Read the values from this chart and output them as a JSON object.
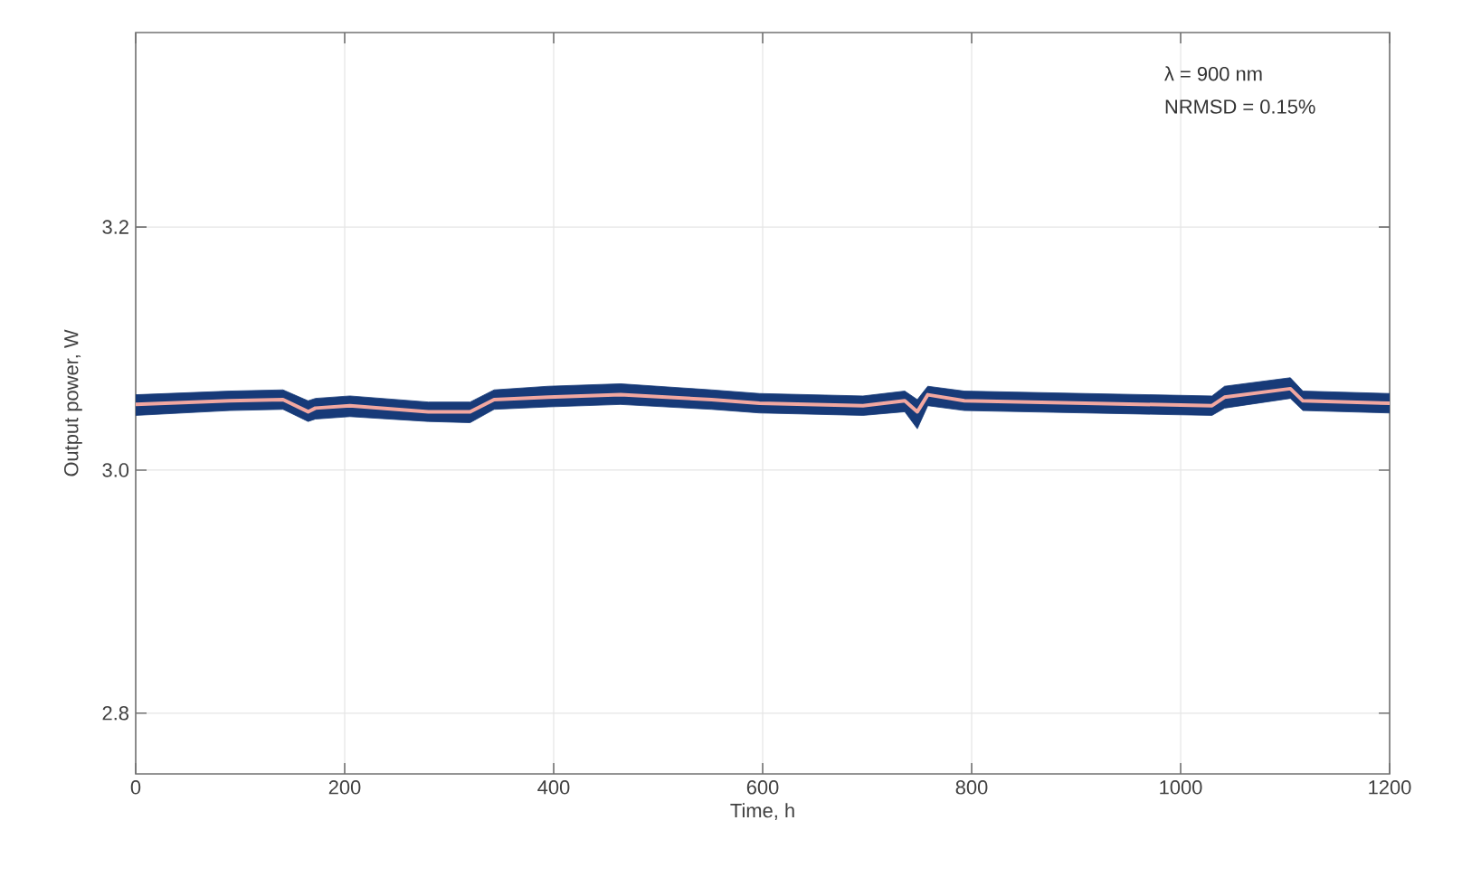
{
  "chart_data": {
    "type": "line",
    "xlabel": "Time, h",
    "ylabel": "Output power, W",
    "annotations": [
      "λ = 900 nm",
      "NRMSD = 0.15%"
    ],
    "x": [
      0,
      90,
      141,
      165,
      172,
      205,
      280,
      320,
      343,
      395,
      464,
      551,
      597,
      696,
      736,
      748,
      758,
      793,
      909,
      1030,
      1042,
      1105,
      1117,
      1200
    ],
    "series": [
      {
        "color": "#f2a7a0",
        "values": [
          3.054,
          3.057,
          3.058,
          3.048,
          3.051,
          3.053,
          3.048,
          3.048,
          3.058,
          3.06,
          3.062,
          3.058,
          3.055,
          3.053,
          3.057,
          3.048,
          3.062,
          3.057,
          3.055,
          3.053,
          3.06,
          3.067,
          3.057,
          3.055
        ],
        "lower": [
          3.045,
          3.049,
          3.05,
          3.04,
          3.042,
          3.044,
          3.04,
          3.039,
          3.05,
          3.052,
          3.054,
          3.05,
          3.047,
          3.045,
          3.048,
          3.034,
          3.053,
          3.049,
          3.047,
          3.045,
          3.051,
          3.059,
          3.049,
          3.047
        ],
        "upper": [
          3.062,
          3.065,
          3.066,
          3.057,
          3.059,
          3.061,
          3.056,
          3.056,
          3.066,
          3.069,
          3.071,
          3.066,
          3.063,
          3.061,
          3.065,
          3.058,
          3.069,
          3.065,
          3.063,
          3.061,
          3.069,
          3.076,
          3.065,
          3.063
        ]
      }
    ],
    "xlim": [
      0,
      1200
    ],
    "ylim": [
      2.75,
      3.36
    ],
    "xticks": [
      0,
      200,
      400,
      600,
      800,
      1000,
      1200
    ],
    "yticks": [
      2.8,
      {
        "value": 3.0,
        "label": "3.0"
      },
      3.2
    ],
    "grid": true,
    "marker": "none",
    "line_style": "solid"
  }
}
